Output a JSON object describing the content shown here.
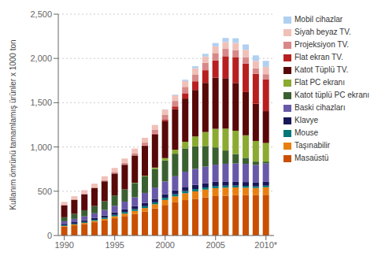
{
  "chart_data": {
    "type": "bar",
    "stacked": true,
    "ylabel": "Kullanım ömrünü tamamlamış ürünler x 1000 ton",
    "x": [
      1990,
      1991,
      1992,
      1993,
      1994,
      1995,
      1996,
      1997,
      1998,
      1999,
      2000,
      2001,
      2002,
      2003,
      2004,
      2005,
      2006,
      2007,
      2008,
      2009,
      2010
    ],
    "xlim": [
      1989.4,
      2010.8
    ],
    "xticks": [
      1990,
      1995,
      2000,
      2005,
      {
        "value": 2010,
        "label": "2010*"
      }
    ],
    "ylim": [
      0,
      2500
    ],
    "yticks": [
      0,
      500,
      {
        "value": 1000,
        "label": "1,000"
      },
      {
        "value": 1500,
        "label": "1,500"
      },
      {
        "value": 2000,
        "label": "2,000"
      },
      {
        "value": 2500,
        "label": "2,500"
      }
    ],
    "grid": true,
    "legend": "right",
    "series": [
      {
        "name": "Masaüstü",
        "color": "#c85000",
        "values": [
          100,
          115,
          130,
          150,
          170,
          195,
          220,
          245,
          270,
          305,
          345,
          375,
          400,
          415,
          430,
          445,
          450,
          455,
          455,
          455,
          460
        ]
      },
      {
        "name": "Taşınabilir",
        "color": "#e88010",
        "values": [
          8,
          10,
          12,
          15,
          18,
          22,
          27,
          33,
          40,
          48,
          57,
          67,
          77,
          84,
          88,
          90,
          90,
          88,
          85,
          82,
          85
        ]
      },
      {
        "name": "Mouse",
        "color": "#007878",
        "values": [
          8,
          9,
          11,
          12,
          14,
          16,
          18,
          20,
          21,
          22,
          23,
          24,
          25,
          25,
          25,
          24,
          23,
          21,
          20,
          18,
          18
        ]
      },
      {
        "name": "Klavye",
        "color": "#181858",
        "values": [
          15,
          17,
          19,
          21,
          24,
          27,
          30,
          33,
          36,
          39,
          42,
          45,
          47,
          48,
          48,
          48,
          47,
          46,
          44,
          42,
          43
        ]
      },
      {
        "name": "Baski cihazları",
        "color": "#6858a8",
        "values": [
          30,
          37,
          45,
          53,
          63,
          75,
          88,
          100,
          114,
          128,
          143,
          158,
          172,
          180,
          187,
          193,
          200,
          205,
          205,
          200,
          207
        ]
      },
      {
        "name": "Katot tüplü PC ekranı",
        "color": "#3a6030",
        "values": [
          45,
          56,
          68,
          82,
          98,
          117,
          138,
          162,
          186,
          210,
          237,
          255,
          263,
          255,
          233,
          195,
          150,
          105,
          68,
          38,
          22
        ]
      },
      {
        "name": "Flat PC ekranı",
        "color": "#8aaa30",
        "values": [
          0,
          0,
          0,
          0,
          0,
          0,
          0,
          3,
          8,
          15,
          27,
          45,
          75,
          112,
          158,
          210,
          247,
          263,
          255,
          233,
          210
        ]
      },
      {
        "name": "Katot Tüplü TV.",
        "color": "#580808",
        "values": [
          135,
          158,
          180,
          202,
          225,
          248,
          278,
          308,
          338,
          375,
          420,
          458,
          488,
          525,
          555,
          578,
          570,
          540,
          488,
          420,
          360
        ]
      },
      {
        "name": "Flat ekran TV.",
        "color": "#b82020",
        "values": [
          0,
          0,
          0,
          0,
          0,
          0,
          0,
          0,
          3,
          8,
          15,
          30,
          60,
          98,
          143,
          195,
          248,
          293,
          323,
          338,
          360
        ]
      },
      {
        "name": "Projeksiyon TV.",
        "color": "#d88888",
        "values": [
          8,
          9,
          11,
          12,
          15,
          18,
          23,
          27,
          33,
          42,
          53,
          63,
          72,
          78,
          83,
          83,
          83,
          78,
          72,
          63,
          57
        ]
      },
      {
        "name": "Siyah beyaz TV.",
        "color": "#f0c0b8",
        "values": [
          30,
          33,
          36,
          39,
          42,
          45,
          48,
          51,
          54,
          57,
          60,
          63,
          66,
          69,
          72,
          75,
          78,
          81,
          83,
          83,
          83
        ]
      },
      {
        "name": "Mobil cihazlar",
        "color": "#b0d0f0",
        "values": [
          0,
          0,
          0,
          0,
          0,
          0,
          0,
          0,
          0,
          0,
          3,
          8,
          15,
          23,
          30,
          38,
          45,
          53,
          60,
          63,
          68
        ]
      }
    ]
  }
}
